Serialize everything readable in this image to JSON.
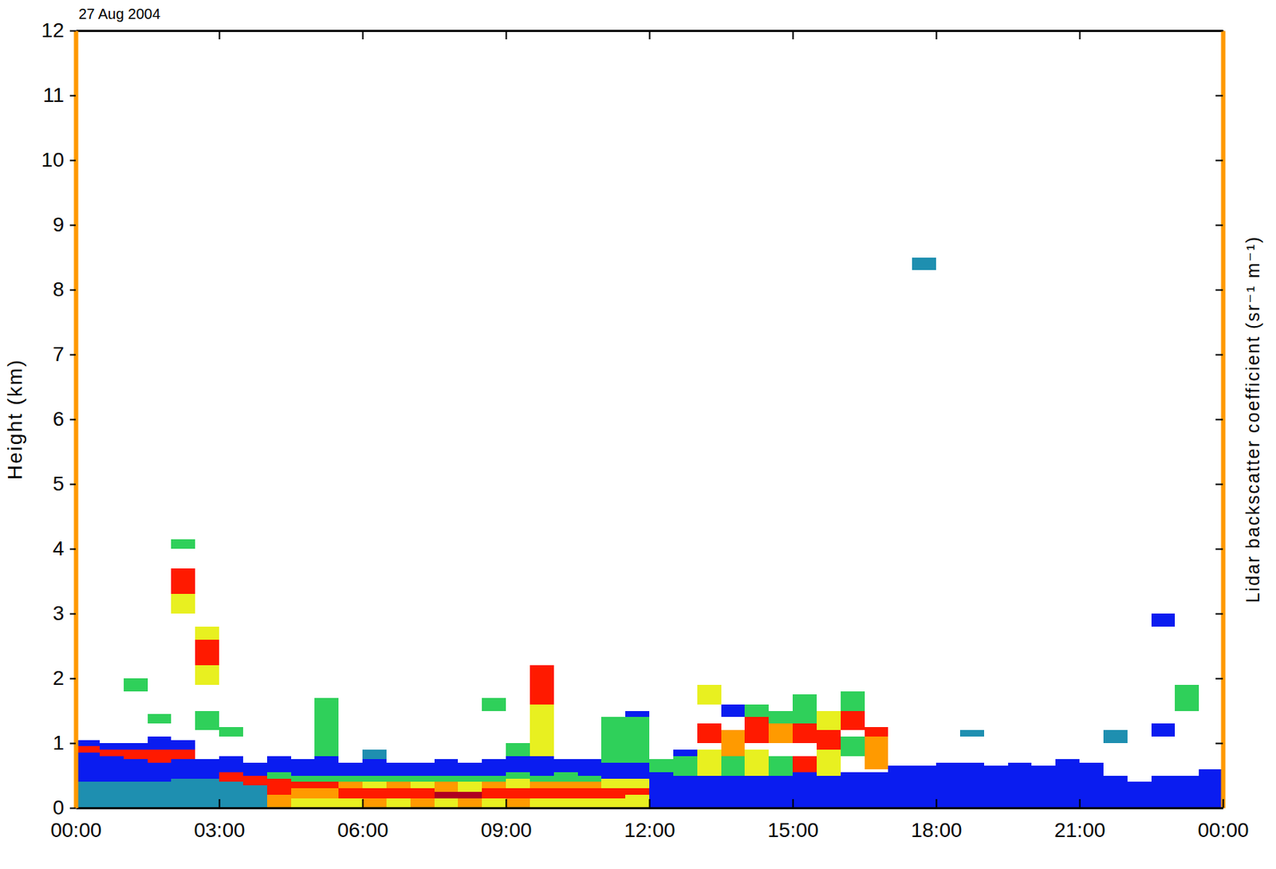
{
  "chart_data": {
    "type": "heatmap",
    "title": "27 Aug 2004",
    "ylabel": "Height (km)",
    "zlabel": "Lidar backscatter coefficient (sr⁻¹ m⁻¹)",
    "xlim": [
      0,
      24
    ],
    "ylim": [
      0,
      12
    ],
    "zlim": [
      -7,
      -4
    ],
    "xticks": [
      {
        "value": 0,
        "label": "00:00"
      },
      {
        "value": 3,
        "label": "03:00"
      },
      {
        "value": 6,
        "label": "06:00"
      },
      {
        "value": 9,
        "label": "09:00"
      },
      {
        "value": 12,
        "label": "12:00"
      },
      {
        "value": 15,
        "label": "15:00"
      },
      {
        "value": 18,
        "label": "18:00"
      },
      {
        "value": 21,
        "label": "21:00"
      },
      {
        "value": 24,
        "label": "00:00"
      }
    ],
    "yticks": [
      0,
      1,
      2,
      3,
      4,
      5,
      6,
      7,
      8,
      9,
      10,
      11,
      12
    ],
    "bin_width": 0.5,
    "profiles": [
      {
        "x": 0,
        "layers": [
          [
            0,
            0.4,
            -6.4
          ],
          [
            0.4,
            0.85,
            -6.8
          ],
          [
            0.85,
            0.95,
            -4.6
          ],
          [
            0.95,
            1.05,
            -6.8
          ]
        ]
      },
      {
        "x": 0.5,
        "layers": [
          [
            0,
            0.4,
            -6.4
          ],
          [
            0.4,
            0.8,
            -6.8
          ],
          [
            0.8,
            0.9,
            -4.6
          ],
          [
            0.9,
            1.0,
            -6.8
          ]
        ]
      },
      {
        "x": 1,
        "layers": [
          [
            0,
            0.4,
            -6.4
          ],
          [
            0.4,
            0.75,
            -6.8
          ],
          [
            0.75,
            0.9,
            -4.6
          ],
          [
            0.9,
            1.0,
            -6.8
          ],
          [
            1.8,
            2.0,
            -6.0
          ]
        ]
      },
      {
        "x": 1.5,
        "layers": [
          [
            0,
            0.4,
            -6.4
          ],
          [
            0.4,
            0.7,
            -6.8
          ],
          [
            0.7,
            0.9,
            -4.6
          ],
          [
            0.9,
            1.1,
            -6.8
          ],
          [
            1.3,
            1.45,
            -6.0
          ]
        ]
      },
      {
        "x": 2,
        "layers": [
          [
            0,
            0.45,
            -6.4
          ],
          [
            0.45,
            0.75,
            -6.8
          ],
          [
            0.75,
            0.9,
            -4.6
          ],
          [
            0.9,
            1.05,
            -6.8
          ],
          [
            3.0,
            3.3,
            -5.5
          ],
          [
            3.3,
            3.7,
            -4.6
          ],
          [
            4.0,
            4.15,
            -6.0
          ]
        ]
      },
      {
        "x": 2.5,
        "layers": [
          [
            0,
            0.45,
            -6.4
          ],
          [
            0.45,
            0.75,
            -6.8
          ],
          [
            1.2,
            1.5,
            -6.0
          ],
          [
            1.9,
            2.2,
            -5.5
          ],
          [
            2.2,
            2.6,
            -4.6
          ],
          [
            2.6,
            2.8,
            -5.5
          ]
        ]
      },
      {
        "x": 3,
        "layers": [
          [
            0,
            0.4,
            -6.4
          ],
          [
            0.4,
            0.55,
            -4.6
          ],
          [
            0.55,
            0.8,
            -6.8
          ],
          [
            1.1,
            1.25,
            -6.0
          ]
        ]
      },
      {
        "x": 3.5,
        "layers": [
          [
            0,
            0.35,
            -6.4
          ],
          [
            0.35,
            0.5,
            -4.6
          ],
          [
            0.5,
            0.7,
            -6.8
          ]
        ]
      },
      {
        "x": 4,
        "layers": [
          [
            0,
            0.2,
            -5.1
          ],
          [
            0.2,
            0.45,
            -4.6
          ],
          [
            0.45,
            0.55,
            -6.0
          ],
          [
            0.55,
            0.8,
            -6.8
          ]
        ]
      },
      {
        "x": 4.5,
        "layers": [
          [
            0,
            0.15,
            -5.5
          ],
          [
            0.15,
            0.3,
            -5.1
          ],
          [
            0.3,
            0.4,
            -4.6
          ],
          [
            0.4,
            0.5,
            -6.0
          ],
          [
            0.5,
            0.75,
            -6.8
          ]
        ]
      },
      {
        "x": 5,
        "layers": [
          [
            0,
            0.15,
            -5.5
          ],
          [
            0.15,
            0.3,
            -5.1
          ],
          [
            0.3,
            0.4,
            -4.6
          ],
          [
            0.4,
            0.5,
            -6.0
          ],
          [
            0.5,
            0.8,
            -6.8
          ],
          [
            0.8,
            1.7,
            -6.0
          ]
        ]
      },
      {
        "x": 5.5,
        "layers": [
          [
            0,
            0.15,
            -5.5
          ],
          [
            0.15,
            0.3,
            -4.6
          ],
          [
            0.3,
            0.4,
            -5.1
          ],
          [
            0.4,
            0.5,
            -6.0
          ],
          [
            0.5,
            0.7,
            -6.8
          ]
        ]
      },
      {
        "x": 6,
        "layers": [
          [
            0,
            0.15,
            -5.1
          ],
          [
            0.15,
            0.3,
            -4.6
          ],
          [
            0.3,
            0.4,
            -5.5
          ],
          [
            0.4,
            0.5,
            -6.0
          ],
          [
            0.5,
            0.75,
            -6.8
          ],
          [
            0.75,
            0.9,
            -6.4
          ]
        ]
      },
      {
        "x": 6.5,
        "layers": [
          [
            0,
            0.15,
            -5.5
          ],
          [
            0.15,
            0.3,
            -4.6
          ],
          [
            0.3,
            0.4,
            -5.1
          ],
          [
            0.4,
            0.5,
            -6.0
          ],
          [
            0.5,
            0.7,
            -6.8
          ]
        ]
      },
      {
        "x": 7,
        "layers": [
          [
            0,
            0.15,
            -5.1
          ],
          [
            0.15,
            0.3,
            -4.6
          ],
          [
            0.3,
            0.4,
            -5.5
          ],
          [
            0.4,
            0.5,
            -6.0
          ],
          [
            0.5,
            0.7,
            -6.8
          ]
        ]
      },
      {
        "x": 7.5,
        "layers": [
          [
            0,
            0.15,
            -5.5
          ],
          [
            0.15,
            0.25,
            -4.2
          ],
          [
            0.25,
            0.4,
            -5.1
          ],
          [
            0.4,
            0.5,
            -6.0
          ],
          [
            0.5,
            0.75,
            -6.8
          ]
        ]
      },
      {
        "x": 8,
        "layers": [
          [
            0,
            0.15,
            -5.1
          ],
          [
            0.15,
            0.25,
            -4.2
          ],
          [
            0.25,
            0.4,
            -5.5
          ],
          [
            0.4,
            0.5,
            -6.0
          ],
          [
            0.5,
            0.7,
            -6.8
          ]
        ]
      },
      {
        "x": 8.5,
        "layers": [
          [
            0,
            0.15,
            -5.5
          ],
          [
            0.15,
            0.3,
            -4.6
          ],
          [
            0.3,
            0.4,
            -5.1
          ],
          [
            0.4,
            0.5,
            -6.0
          ],
          [
            0.5,
            0.75,
            -6.8
          ],
          [
            1.5,
            1.7,
            -6.0
          ]
        ]
      },
      {
        "x": 9,
        "layers": [
          [
            0,
            0.15,
            -5.1
          ],
          [
            0.15,
            0.3,
            -4.6
          ],
          [
            0.3,
            0.45,
            -5.5
          ],
          [
            0.45,
            0.55,
            -6.0
          ],
          [
            0.55,
            0.8,
            -6.8
          ],
          [
            0.8,
            1.0,
            -6.0
          ]
        ]
      },
      {
        "x": 9.5,
        "layers": [
          [
            0,
            0.15,
            -5.5
          ],
          [
            0.15,
            0.3,
            -4.6
          ],
          [
            0.3,
            0.4,
            -5.1
          ],
          [
            0.4,
            0.5,
            -6.0
          ],
          [
            0.5,
            0.8,
            -6.8
          ],
          [
            0.8,
            1.6,
            -5.5
          ],
          [
            1.6,
            2.2,
            -4.6
          ]
        ]
      },
      {
        "x": 10,
        "layers": [
          [
            0,
            0.15,
            -5.5
          ],
          [
            0.15,
            0.3,
            -4.6
          ],
          [
            0.3,
            0.4,
            -5.1
          ],
          [
            0.4,
            0.55,
            -6.0
          ],
          [
            0.55,
            0.75,
            -6.8
          ]
        ]
      },
      {
        "x": 10.5,
        "layers": [
          [
            0,
            0.15,
            -5.5
          ],
          [
            0.15,
            0.3,
            -4.6
          ],
          [
            0.3,
            0.4,
            -5.1
          ],
          [
            0.4,
            0.5,
            -6.0
          ],
          [
            0.5,
            0.75,
            -6.8
          ]
        ]
      },
      {
        "x": 11,
        "layers": [
          [
            0,
            0.15,
            -5.5
          ],
          [
            0.15,
            0.3,
            -4.6
          ],
          [
            0.3,
            0.45,
            -5.5
          ],
          [
            0.45,
            0.7,
            -6.8
          ],
          [
            0.7,
            1.4,
            -6.0
          ]
        ]
      },
      {
        "x": 11.5,
        "layers": [
          [
            0,
            0.2,
            -5.5
          ],
          [
            0.2,
            0.3,
            -4.6
          ],
          [
            0.3,
            0.45,
            -5.5
          ],
          [
            0.45,
            0.7,
            -6.8
          ],
          [
            0.7,
            1.4,
            -6.0
          ],
          [
            1.4,
            1.5,
            -6.8
          ]
        ]
      },
      {
        "x": 12,
        "layers": [
          [
            0,
            0.55,
            -6.8
          ],
          [
            0.55,
            0.75,
            -6.0
          ]
        ]
      },
      {
        "x": 12.5,
        "layers": [
          [
            0,
            0.5,
            -6.8
          ],
          [
            0.5,
            0.8,
            -6.0
          ],
          [
            0.8,
            0.9,
            -6.8
          ]
        ]
      },
      {
        "x": 13,
        "layers": [
          [
            0,
            0.5,
            -6.8
          ],
          [
            0.5,
            0.9,
            -5.5
          ],
          [
            1.0,
            1.3,
            -4.6
          ],
          [
            1.6,
            1.9,
            -5.5
          ]
        ]
      },
      {
        "x": 13.5,
        "layers": [
          [
            0,
            0.5,
            -6.8
          ],
          [
            0.5,
            0.8,
            -6.0
          ],
          [
            0.8,
            1.2,
            -5.1
          ],
          [
            1.4,
            1.6,
            -6.8
          ]
        ]
      },
      {
        "x": 14,
        "layers": [
          [
            0,
            0.5,
            -6.8
          ],
          [
            0.5,
            0.9,
            -5.5
          ],
          [
            1.0,
            1.4,
            -4.6
          ],
          [
            1.4,
            1.6,
            -6.0
          ]
        ]
      },
      {
        "x": 14.5,
        "layers": [
          [
            0,
            0.5,
            -6.8
          ],
          [
            0.5,
            0.8,
            -6.0
          ],
          [
            1.0,
            1.3,
            -5.1
          ],
          [
            1.3,
            1.5,
            -6.0
          ]
        ]
      },
      {
        "x": 15,
        "layers": [
          [
            0,
            0.55,
            -6.8
          ],
          [
            0.55,
            0.8,
            -4.6
          ],
          [
            1.0,
            1.3,
            -4.6
          ],
          [
            1.3,
            1.75,
            -6.0
          ]
        ]
      },
      {
        "x": 15.5,
        "layers": [
          [
            0,
            0.5,
            -6.8
          ],
          [
            0.5,
            0.9,
            -5.5
          ],
          [
            0.9,
            1.2,
            -4.6
          ],
          [
            1.2,
            1.5,
            -5.5
          ]
        ]
      },
      {
        "x": 16,
        "layers": [
          [
            0,
            0.55,
            -6.8
          ],
          [
            0.8,
            1.1,
            -6.0
          ],
          [
            1.2,
            1.5,
            -4.6
          ],
          [
            1.5,
            1.8,
            -6.0
          ]
        ]
      },
      {
        "x": 16.5,
        "layers": [
          [
            0,
            0.55,
            -6.8
          ],
          [
            0.6,
            1.1,
            -5.1
          ],
          [
            1.1,
            1.25,
            -4.6
          ]
        ]
      },
      {
        "x": 17,
        "layers": [
          [
            0,
            0.65,
            -6.8
          ]
        ]
      },
      {
        "x": 17.5,
        "layers": [
          [
            0,
            0.65,
            -6.8
          ],
          [
            8.3,
            8.5,
            -6.4
          ]
        ]
      },
      {
        "x": 18,
        "layers": [
          [
            0,
            0.7,
            -6.8
          ]
        ]
      },
      {
        "x": 18.5,
        "layers": [
          [
            0,
            0.7,
            -6.8
          ],
          [
            1.1,
            1.2,
            -6.4
          ]
        ]
      },
      {
        "x": 19,
        "layers": [
          [
            0,
            0.65,
            -6.8
          ]
        ]
      },
      {
        "x": 19.5,
        "layers": [
          [
            0,
            0.7,
            -6.8
          ]
        ]
      },
      {
        "x": 20,
        "layers": [
          [
            0,
            0.65,
            -6.8
          ]
        ]
      },
      {
        "x": 20.5,
        "layers": [
          [
            0,
            0.75,
            -6.8
          ]
        ]
      },
      {
        "x": 21,
        "layers": [
          [
            0,
            0.7,
            -6.8
          ]
        ]
      },
      {
        "x": 21.5,
        "layers": [
          [
            0,
            0.5,
            -6.8
          ],
          [
            1.0,
            1.2,
            -6.4
          ]
        ]
      },
      {
        "x": 22,
        "layers": [
          [
            0,
            0.4,
            -6.8
          ]
        ]
      },
      {
        "x": 22.5,
        "layers": [
          [
            0,
            0.5,
            -6.8
          ],
          [
            1.1,
            1.3,
            -6.8
          ],
          [
            2.8,
            3.0,
            -6.8
          ]
        ]
      },
      {
        "x": 23,
        "layers": [
          [
            0,
            0.5,
            -6.8
          ],
          [
            1.5,
            1.9,
            -6.0
          ]
        ]
      },
      {
        "x": 23.5,
        "layers": [
          [
            0,
            0.6,
            -6.8
          ]
        ]
      }
    ]
  }
}
